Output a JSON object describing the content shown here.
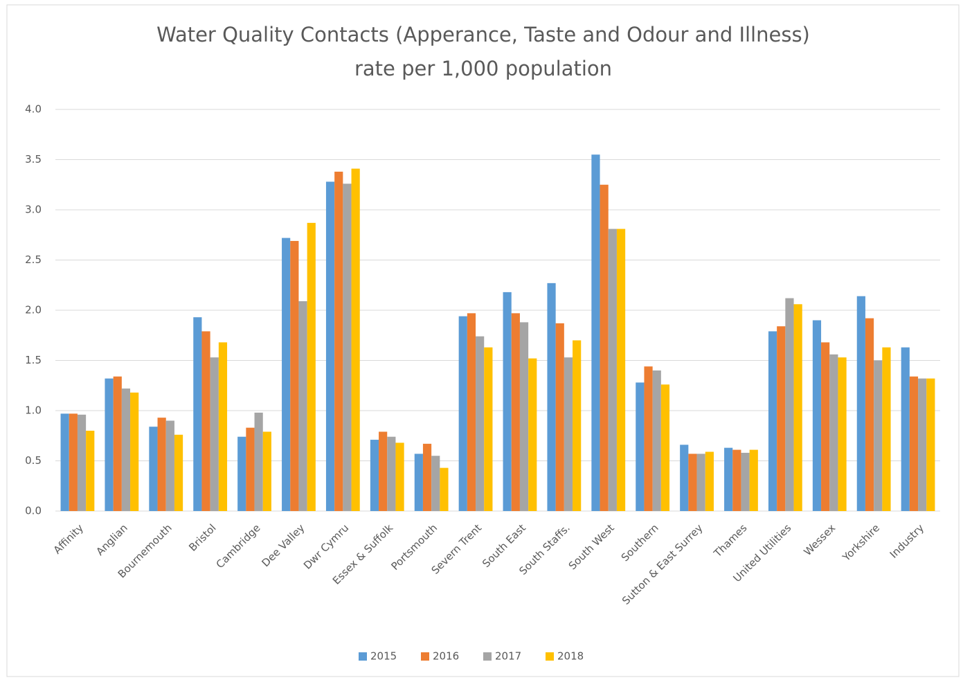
{
  "chart_data": {
    "type": "bar",
    "title": [
      "Water Quality Contacts (Apperance, Taste and Odour and Illness)",
      "rate per 1,000 population"
    ],
    "categories": [
      "Affinity",
      "Anglian",
      "Bournemouth",
      "Bristol",
      "Cambridge",
      "Dee Valley",
      "Dwr Cymru",
      "Essex & Suffolk",
      "Portsmouth",
      "Severn Trent",
      "South East",
      "South Staffs.",
      "South West",
      "Southern",
      "Sutton & East Surrey",
      "Thames",
      "United Utilities",
      "Wessex",
      "Yorkshire",
      "Industry"
    ],
    "series": [
      {
        "name": "2015",
        "color": "#5b9bd5",
        "values": [
          0.97,
          1.32,
          0.84,
          1.93,
          0.74,
          2.72,
          3.28,
          0.71,
          0.57,
          1.94,
          2.18,
          2.27,
          3.55,
          1.28,
          0.66,
          0.63,
          1.79,
          1.9,
          2.14,
          1.63
        ]
      },
      {
        "name": "2016",
        "color": "#ed7d31",
        "values": [
          0.97,
          1.34,
          0.93,
          1.79,
          0.83,
          2.69,
          3.38,
          0.79,
          0.67,
          1.97,
          1.97,
          1.87,
          3.25,
          1.44,
          0.57,
          0.61,
          1.84,
          1.68,
          1.92,
          1.34
        ]
      },
      {
        "name": "2017",
        "color": "#a5a5a5",
        "values": [
          0.96,
          1.22,
          0.9,
          1.53,
          0.98,
          2.09,
          3.26,
          0.74,
          0.55,
          1.74,
          1.88,
          1.53,
          2.81,
          1.4,
          0.57,
          0.58,
          2.12,
          1.56,
          1.5,
          1.32
        ]
      },
      {
        "name": "2018",
        "color": "#ffc000",
        "values": [
          0.8,
          1.18,
          0.76,
          1.68,
          0.79,
          2.87,
          3.41,
          0.68,
          0.43,
          1.63,
          1.52,
          1.7,
          2.81,
          1.26,
          0.59,
          0.61,
          2.06,
          1.53,
          1.63,
          1.32
        ]
      }
    ],
    "ylim": [
      0,
      4
    ],
    "yticks": [
      {
        "value": 0,
        "label": "0.0"
      },
      0.5,
      {
        "value": 1,
        "label": "1.0"
      },
      1.5,
      {
        "value": 2,
        "label": "2.0"
      },
      2.5,
      {
        "value": 3,
        "label": "3.0"
      },
      3.5,
      {
        "value": 4,
        "label": "4.0"
      }
    ],
    "grid": true,
    "legend": "bottom"
  }
}
